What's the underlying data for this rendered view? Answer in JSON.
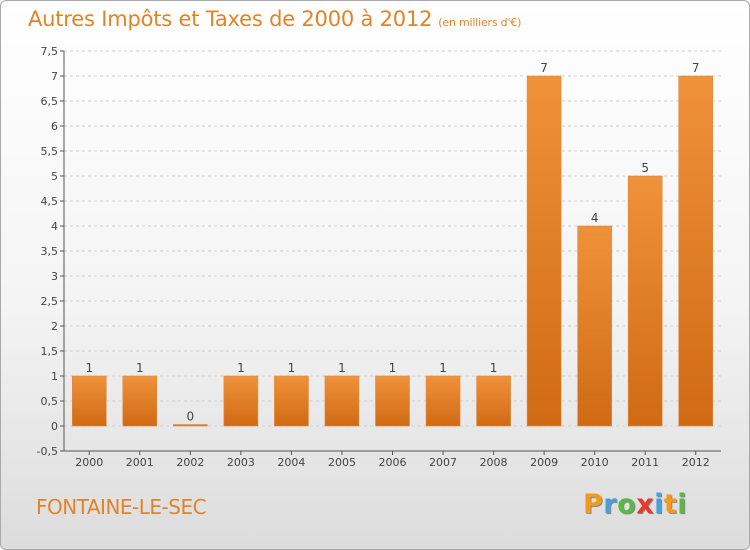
{
  "chart_data": {
    "type": "bar",
    "title": "Autres Impôts et Taxes de 2000 à 2012",
    "subtitle": "(en milliers d'€)",
    "categories": [
      "2000",
      "2001",
      "2002",
      "2003",
      "2004",
      "2005",
      "2006",
      "2007",
      "2008",
      "2009",
      "2010",
      "2011",
      "2012"
    ],
    "values": [
      1,
      1,
      0,
      1,
      1,
      1,
      1,
      1,
      1,
      7,
      4,
      5,
      7
    ],
    "value_labels": [
      "1",
      "1",
      "0",
      "1",
      "1",
      "1",
      "1",
      "1",
      "1",
      "7",
      "4",
      "5",
      "7"
    ],
    "ylim": [
      -0.5,
      7.5
    ],
    "yticks": [
      -0.5,
      0,
      0.5,
      1,
      1.5,
      2,
      2.5,
      3,
      3.5,
      4,
      4.5,
      5,
      5.5,
      6,
      6.5,
      7,
      7.5
    ],
    "ytick_labels": [
      "-0,5",
      "0",
      "0,5",
      "1",
      "1,5",
      "2",
      "2,5",
      "3",
      "3,5",
      "4",
      "4,5",
      "5",
      "5,5",
      "6",
      "6,5",
      "7",
      "7,5"
    ],
    "grid": true,
    "bar_color": "#f0923a",
    "bar_color_dark": "#d06a14"
  },
  "place_name": "FONTAINE-LE-SEC",
  "logo": {
    "letters": [
      "P",
      "r",
      "o",
      "x",
      "i",
      "t",
      "i"
    ],
    "colors": [
      "#f39a1c",
      "#4a9fd8",
      "#58b947",
      "#e8392c",
      "#4a9fd8",
      "#f39a1c",
      "#58b947"
    ]
  }
}
